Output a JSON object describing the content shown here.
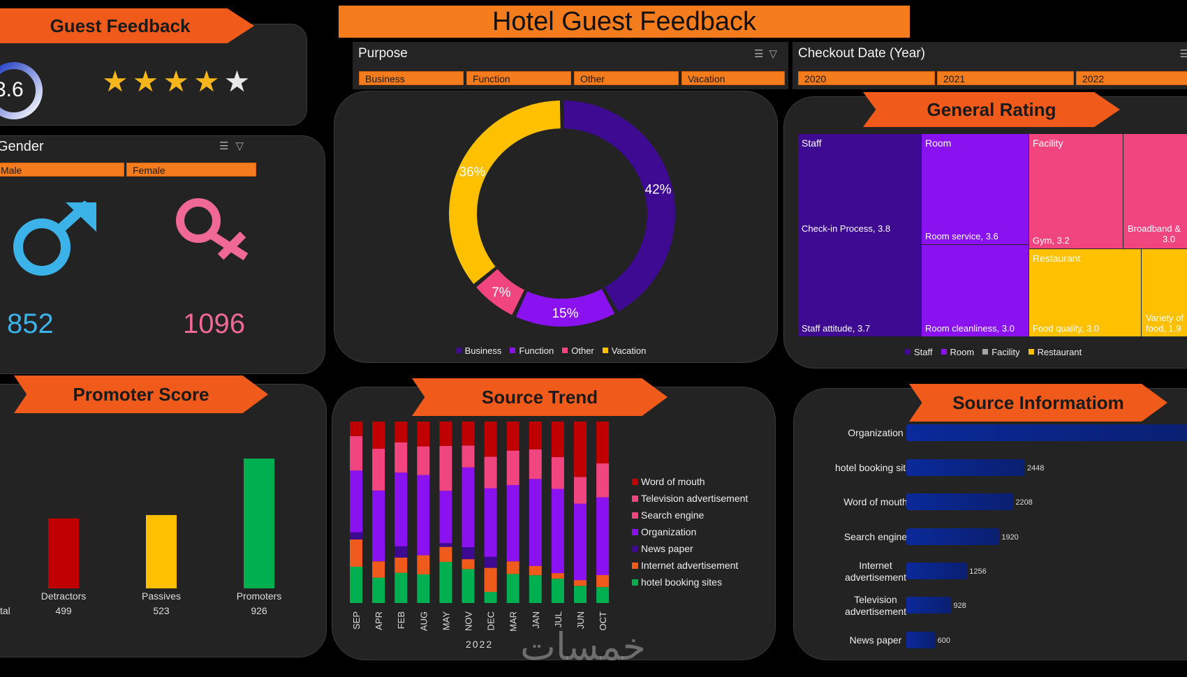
{
  "main_title": "Hotel Guest Feedback",
  "guest_feedback": {
    "title": "Guest Feedback",
    "score": "3.6",
    "stars_value": 3.6,
    "stars_max": 5
  },
  "gender": {
    "title": "Gender",
    "options": [
      "Male",
      "Female"
    ],
    "male_count": "852",
    "female_count": "1096",
    "colors": {
      "male": "#3bb3e8",
      "female": "#f06896"
    }
  },
  "purpose": {
    "title": "Purpose",
    "options": [
      "Business",
      "Function",
      "Other",
      "Vacation"
    ]
  },
  "checkout": {
    "title": "Checkout Date (Year)",
    "options": [
      "2020",
      "2021",
      "2022"
    ]
  },
  "purpose_chart": {
    "type": "pie",
    "slices": [
      {
        "name": "Business",
        "value": 42,
        "label": "42%",
        "color": "#3d0a91"
      },
      {
        "name": "Function",
        "value": 15,
        "label": "15%",
        "color": "#8a12f0"
      },
      {
        "name": "Other",
        "value": 7,
        "label": "7%",
        "color": "#f0457f"
      },
      {
        "name": "Vacation",
        "value": 36,
        "label": "36%",
        "color": "#ffc000"
      }
    ],
    "legend": [
      "Business",
      "Function",
      "Other",
      "Vacation"
    ]
  },
  "general_rating": {
    "title": "General Rating",
    "cells": [
      {
        "group": "Staff",
        "label": "Check-in Process, 3.8",
        "color": "#3d0a91"
      },
      {
        "label": "Staff attitude, 3.7",
        "color": "#3d0a91"
      },
      {
        "group": "Room",
        "label": "Room service, 3.6",
        "color": "#8a12f0"
      },
      {
        "label": "Room cleanliness, 3.0",
        "color": "#8a12f0"
      },
      {
        "group": "Facility",
        "label": "Gym, 3.2",
        "color": "#f0457f"
      },
      {
        "label": "Broadband &",
        "label2": "3.0",
        "color": "#f0457f"
      },
      {
        "group": "Restaurant",
        "label": "Food quality, 3.0",
        "color": "#ffc000"
      },
      {
        "label": "Variety of",
        "label2": "food, 1.9",
        "color": "#ffc000"
      }
    ],
    "legend": [
      {
        "name": "Staff",
        "color": "#3d0a91"
      },
      {
        "name": "Room",
        "color": "#8a12f0"
      },
      {
        "name": "Facility",
        "color": "#a6a6a6"
      },
      {
        "name": "Restaurant",
        "color": "#ffc000"
      }
    ]
  },
  "promoter": {
    "title": "Promoter Score",
    "total_label": "tal",
    "bars": [
      {
        "name": "Detractors",
        "value": 499,
        "value_label": "499",
        "color": "#c00000"
      },
      {
        "name": "Passives",
        "value": 523,
        "value_label": "523",
        "color": "#ffc000"
      },
      {
        "name": "Promoters",
        "value": 926,
        "value_label": "926",
        "color": "#00b050"
      }
    ]
  },
  "chart_data": [
    {
      "type": "bar",
      "title": "Source Trend",
      "stacked": true,
      "percent_stacked": true,
      "categories": [
        "SEP",
        "APR",
        "FEB",
        "AUG",
        "MAY",
        "NOV",
        "DEC",
        "MAR",
        "JAN",
        "JUL",
        "JUN",
        "OCT"
      ],
      "xlabel": "2022",
      "series": [
        {
          "name": "hotel booking sites",
          "color": "#00b050",
          "values": [
            20,
            14,
            16,
            15,
            22,
            17,
            6,
            16,
            15,
            13,
            9,
            8
          ]
        },
        {
          "name": "Internet advertisement",
          "color": "#f05a1a",
          "values": [
            15,
            9,
            8,
            10,
            8,
            5,
            13,
            7,
            5,
            3,
            3,
            6
          ]
        },
        {
          "name": "News paper",
          "color": "#3d0a91",
          "values": [
            4,
            0,
            6,
            0,
            2,
            6,
            6,
            0,
            0,
            0,
            0,
            0
          ]
        },
        {
          "name": "Organization",
          "color": "#8a12f0",
          "values": [
            34,
            39,
            39,
            42,
            28,
            40,
            37,
            42,
            47,
            45,
            40,
            39
          ]
        },
        {
          "name": "Search engine",
          "color": "#f0457f",
          "values": [
            19,
            23,
            16,
            15,
            24,
            11,
            17,
            19,
            16,
            17,
            14,
            17
          ]
        },
        {
          "name": "Television advertisement",
          "color": "#f0457f",
          "values": [
            0,
            0,
            0,
            0,
            0,
            0,
            0,
            0,
            0,
            0,
            0,
            0
          ]
        },
        {
          "name": "Word of mouth",
          "color": "#c00000",
          "values": [
            8,
            15,
            11,
            13,
            13,
            12,
            19,
            16,
            15,
            19,
            29,
            21
          ]
        }
      ],
      "legend": [
        "Word of mouth",
        "Television advertisement",
        "Search engine",
        "Organization",
        "News paper",
        "Internet advertisement",
        "hotel booking sites"
      ]
    },
    {
      "type": "bar",
      "orientation": "horizontal",
      "title": "Source Informatiom",
      "categories": [
        "Organization",
        "hotel booking sites",
        "Word of mouth",
        "Search engine",
        "Internet advertisement",
        "Television advertisement",
        "News paper"
      ],
      "values": [
        null,
        2448,
        2208,
        1920,
        1256,
        928,
        600
      ],
      "value_labels": [
        "",
        "2448",
        "2208",
        "1920",
        "1256",
        "928",
        "600"
      ],
      "category_lines": [
        [
          "Organization"
        ],
        [
          "hotel booking sites"
        ],
        [
          "Word of mouth"
        ],
        [
          "Search engine"
        ],
        [
          "Internet",
          "advertisement"
        ],
        [
          "Television",
          "advertisement"
        ],
        [
          "News paper"
        ]
      ]
    }
  ],
  "watermark": "خمسات"
}
